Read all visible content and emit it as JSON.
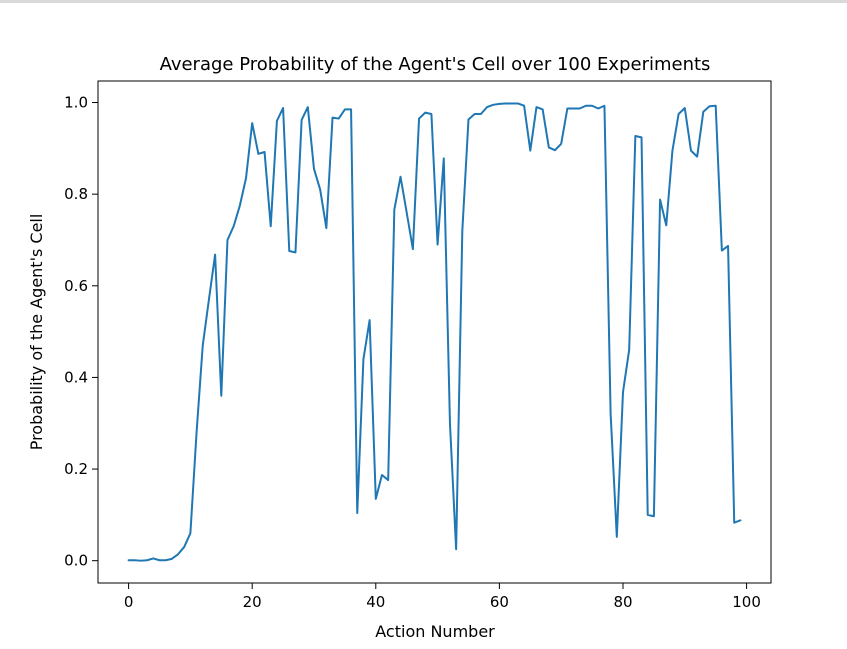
{
  "chart_data": {
    "type": "line",
    "title": "Average Probability of the Agent's Cell over 100 Experiments",
    "xlabel": "Action Number",
    "ylabel": "Probability of the Agent's Cell",
    "xlim": [
      -4.95,
      103.95
    ],
    "ylim": [
      -0.0487,
      1.047
    ],
    "xticks": [
      0,
      20,
      40,
      60,
      80,
      100
    ],
    "yticks": [
      0.0,
      0.2,
      0.4,
      0.6,
      0.8,
      1.0
    ],
    "xtick_labels": [
      "0",
      "20",
      "40",
      "60",
      "80",
      "100"
    ],
    "ytick_labels": [
      "0.0",
      "0.2",
      "0.4",
      "0.6",
      "0.8",
      "1.0"
    ],
    "grid": false,
    "series": [
      {
        "color": "#1f77b4",
        "x": [
          0,
          1,
          2,
          3,
          4,
          5,
          6,
          7,
          8,
          9,
          10,
          11,
          12,
          13,
          14,
          15,
          16,
          17,
          18,
          19,
          20,
          21,
          22,
          23,
          24,
          25,
          26,
          27,
          28,
          29,
          30,
          31,
          32,
          33,
          34,
          35,
          36,
          37,
          38,
          39,
          40,
          41,
          42,
          43,
          44,
          45,
          46,
          47,
          48,
          49,
          50,
          51,
          52,
          53,
          54,
          55,
          56,
          57,
          58,
          59,
          60,
          61,
          62,
          63,
          64,
          65,
          66,
          67,
          68,
          69,
          70,
          71,
          72,
          73,
          74,
          75,
          76,
          77,
          78,
          79,
          80,
          81,
          82,
          83,
          84,
          85,
          86,
          87,
          88,
          89,
          90,
          91,
          92,
          93,
          94,
          95,
          96,
          97,
          98,
          99
        ],
        "values": [
          0.001,
          0.001,
          0.0,
          0.001,
          0.005,
          0.001,
          0.001,
          0.004,
          0.014,
          0.03,
          0.06,
          0.28,
          0.47,
          0.57,
          0.668,
          0.36,
          0.7,
          0.73,
          0.775,
          0.835,
          0.955,
          0.888,
          0.892,
          0.73,
          0.96,
          0.988,
          0.676,
          0.673,
          0.962,
          0.99,
          0.855,
          0.81,
          0.726,
          0.967,
          0.965,
          0.985,
          0.985,
          0.104,
          0.44,
          0.525,
          0.135,
          0.187,
          0.176,
          0.766,
          0.838,
          0.76,
          0.68,
          0.965,
          0.978,
          0.975,
          0.69,
          0.878,
          0.3,
          0.025,
          0.72,
          0.963,
          0.975,
          0.975,
          0.99,
          0.995,
          0.997,
          0.998,
          0.998,
          0.998,
          0.993,
          0.895,
          0.99,
          0.985,
          0.902,
          0.896,
          0.91,
          0.987,
          0.987,
          0.987,
          0.993,
          0.993,
          0.987,
          0.993,
          0.32,
          0.052,
          0.368,
          0.46,
          0.927,
          0.924,
          0.1,
          0.097,
          0.788,
          0.732,
          0.895,
          0.975,
          0.988,
          0.895,
          0.882,
          0.98,
          0.992,
          0.993,
          0.677,
          0.687,
          0.083,
          0.088
        ]
      }
    ]
  }
}
